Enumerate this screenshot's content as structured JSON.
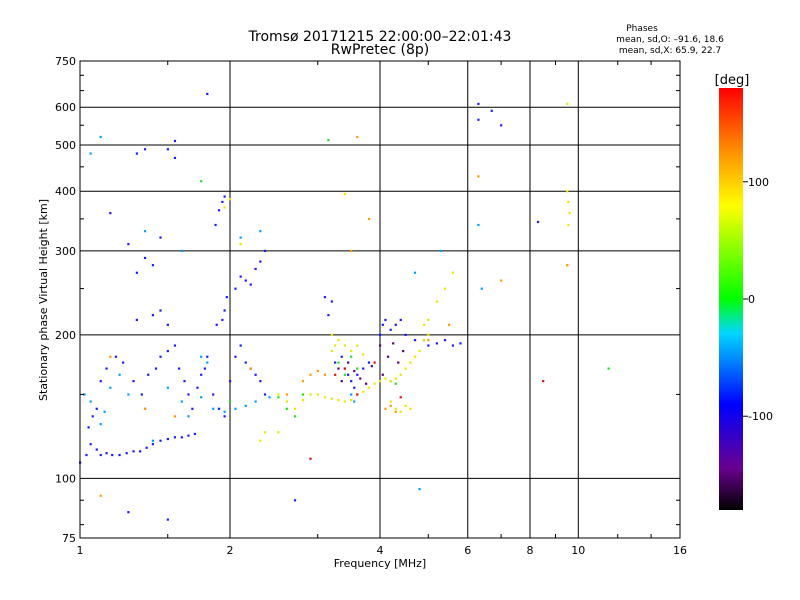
{
  "chart_data": {
    "type": "scatter",
    "title": "Tromsø 20171215 22:00:00–22:01:43",
    "subtitle": "RwPretec (8p)",
    "stats": {
      "heading": "Phases",
      "line1": "mean, sd,O: –91.6, 18.6",
      "line2": "mean, sd,X:  65.9, 22.7"
    },
    "xlabel": "Frequency [MHz]",
    "ylabel": "Stationary phase Virtual Height [km]",
    "xscale": "log",
    "yscale": "log",
    "xlim": [
      1,
      16
    ],
    "ylim": [
      75,
      750
    ],
    "xticks": [
      1,
      2,
      4,
      6,
      8,
      10,
      16
    ],
    "xtick_labels": [
      "1",
      "2",
      "4",
      "6",
      "8",
      "10",
      "16"
    ],
    "yticks": [
      75,
      100,
      200,
      300,
      400,
      500,
      600,
      750
    ],
    "ytick_labels": [
      "75",
      "100",
      "200",
      "300",
      "400",
      "500",
      "600",
      "750"
    ],
    "grid": true,
    "colorbar": {
      "label": "[deg]",
      "range": [
        -180,
        180
      ],
      "ticks": [
        100,
        0,
        -100
      ],
      "tick_labels": [
        "100",
        "0",
        "-100"
      ]
    },
    "series": [
      {
        "color": "#1a1aff",
        "points": [
          [
            1.0,
            108
          ],
          [
            1.03,
            112
          ],
          [
            1.05,
            118
          ],
          [
            1.08,
            115
          ],
          [
            1.1,
            112
          ],
          [
            1.13,
            113
          ],
          [
            1.16,
            112
          ],
          [
            1.2,
            112
          ],
          [
            1.24,
            113
          ],
          [
            1.28,
            114
          ],
          [
            1.32,
            114
          ],
          [
            1.36,
            116
          ],
          [
            1.4,
            118
          ],
          [
            1.45,
            120
          ],
          [
            1.5,
            121
          ],
          [
            1.55,
            122
          ],
          [
            1.6,
            122
          ],
          [
            1.65,
            123
          ],
          [
            1.7,
            124
          ],
          [
            1.04,
            128
          ],
          [
            1.06,
            135
          ],
          [
            1.08,
            140
          ],
          [
            1.02,
            150
          ],
          [
            1.1,
            160
          ],
          [
            1.13,
            170
          ],
          [
            1.18,
            180
          ],
          [
            1.22,
            175
          ],
          [
            1.28,
            160
          ],
          [
            1.33,
            150
          ],
          [
            1.37,
            165
          ],
          [
            1.42,
            170
          ],
          [
            1.45,
            180
          ],
          [
            1.5,
            185
          ],
          [
            1.55,
            190
          ],
          [
            1.58,
            170
          ],
          [
            1.62,
            160
          ],
          [
            1.65,
            150
          ],
          [
            1.68,
            140
          ],
          [
            1.72,
            155
          ],
          [
            1.75,
            165
          ],
          [
            1.78,
            170
          ],
          [
            1.8,
            180
          ],
          [
            1.85,
            150
          ],
          [
            1.9,
            140
          ],
          [
            1.95,
            135
          ],
          [
            2.0,
            160
          ],
          [
            2.05,
            180
          ],
          [
            2.1,
            190
          ],
          [
            2.15,
            175
          ],
          [
            2.2,
            170
          ],
          [
            2.25,
            165
          ],
          [
            2.3,
            160
          ],
          [
            2.35,
            150
          ],
          [
            1.3,
            215
          ],
          [
            1.4,
            220
          ],
          [
            1.45,
            225
          ],
          [
            1.5,
            210
          ],
          [
            1.88,
            210
          ],
          [
            1.93,
            215
          ],
          [
            1.95,
            225
          ],
          [
            1.97,
            240
          ],
          [
            2.05,
            250
          ],
          [
            2.1,
            265
          ],
          [
            2.15,
            260
          ],
          [
            2.2,
            255
          ],
          [
            2.25,
            275
          ],
          [
            2.3,
            285
          ],
          [
            2.35,
            300
          ],
          [
            1.3,
            270
          ],
          [
            1.35,
            290
          ],
          [
            1.4,
            280
          ],
          [
            1.25,
            310
          ],
          [
            1.15,
            360
          ],
          [
            1.45,
            320
          ],
          [
            1.87,
            340
          ],
          [
            1.9,
            365
          ],
          [
            1.93,
            380
          ],
          [
            1.95,
            390
          ],
          [
            1.3,
            480
          ],
          [
            1.35,
            490
          ],
          [
            1.5,
            490
          ],
          [
            1.55,
            510
          ],
          [
            1.55,
            470
          ],
          [
            1.8,
            640
          ],
          [
            1.5,
            82
          ],
          [
            1.25,
            85
          ],
          [
            3.25,
            175
          ],
          [
            3.35,
            180
          ],
          [
            3.4,
            170
          ],
          [
            3.45,
            165
          ],
          [
            3.5,
            160
          ],
          [
            3.55,
            155
          ],
          [
            3.6,
            165
          ],
          [
            3.7,
            170
          ],
          [
            3.8,
            175
          ],
          [
            4.0,
            200
          ],
          [
            4.05,
            210
          ],
          [
            4.1,
            215
          ],
          [
            4.2,
            205
          ],
          [
            4.3,
            210
          ],
          [
            4.4,
            215
          ],
          [
            4.5,
            200
          ],
          [
            4.7,
            195
          ],
          [
            4.9,
            195
          ],
          [
            5.0,
            190
          ],
          [
            5.2,
            192
          ],
          [
            5.4,
            195
          ],
          [
            5.6,
            190
          ],
          [
            5.8,
            192
          ],
          [
            3.1,
            240
          ],
          [
            3.2,
            235
          ],
          [
            3.15,
            220
          ],
          [
            6.3,
            610
          ],
          [
            6.3,
            565
          ],
          [
            6.7,
            590
          ],
          [
            7.0,
            550
          ],
          [
            8.3,
            345
          ],
          [
            2.7,
            90
          ]
        ]
      },
      {
        "color": "#00a0ff",
        "points": [
          [
            1.02,
            150
          ],
          [
            1.05,
            145
          ],
          [
            1.1,
            130
          ],
          [
            1.12,
            138
          ],
          [
            1.15,
            155
          ],
          [
            1.2,
            165
          ],
          [
            1.25,
            150
          ],
          [
            1.35,
            140
          ],
          [
            1.5,
            155
          ],
          [
            1.6,
            145
          ],
          [
            1.65,
            135
          ],
          [
            1.75,
            148
          ],
          [
            1.85,
            140
          ],
          [
            1.95,
            138
          ],
          [
            2.05,
            140
          ],
          [
            2.15,
            142
          ],
          [
            2.25,
            145
          ],
          [
            2.4,
            148
          ],
          [
            1.05,
            480
          ],
          [
            1.1,
            520
          ],
          [
            1.35,
            330
          ],
          [
            1.6,
            300
          ],
          [
            2.1,
            320
          ],
          [
            2.3,
            330
          ],
          [
            6.3,
            340
          ],
          [
            6.4,
            250
          ],
          [
            5.3,
            300
          ],
          [
            4.7,
            270
          ],
          [
            4.8,
            95
          ],
          [
            3.5,
            150
          ],
          [
            3.55,
            145
          ],
          [
            1.75,
            180
          ],
          [
            1.8,
            175
          ],
          [
            1.4,
            120
          ]
        ]
      },
      {
        "color": "#20e020",
        "points": [
          [
            2.5,
            148
          ],
          [
            2.6,
            140
          ],
          [
            2.7,
            135
          ],
          [
            2.8,
            150
          ],
          [
            3.3,
            175
          ],
          [
            3.4,
            165
          ],
          [
            3.5,
            180
          ],
          [
            3.6,
            170
          ],
          [
            1.75,
            420
          ],
          [
            11.5,
            170
          ],
          [
            4.2,
            160
          ],
          [
            4.3,
            158
          ],
          [
            2.0,
            145
          ],
          [
            3.15,
            512
          ]
        ]
      },
      {
        "color": "#e8e800",
        "points": [
          [
            2.5,
            150
          ],
          [
            2.6,
            145
          ],
          [
            2.7,
            140
          ],
          [
            2.8,
            146
          ],
          [
            2.9,
            150
          ],
          [
            3.0,
            150
          ],
          [
            3.1,
            148
          ],
          [
            3.2,
            147
          ],
          [
            3.3,
            146
          ],
          [
            3.4,
            145
          ],
          [
            3.5,
            146
          ],
          [
            3.6,
            150
          ],
          [
            3.7,
            152
          ],
          [
            3.8,
            155
          ],
          [
            3.9,
            158
          ],
          [
            4.0,
            160
          ],
          [
            4.1,
            162
          ],
          [
            4.2,
            160
          ],
          [
            4.3,
            162
          ],
          [
            4.4,
            165
          ],
          [
            4.5,
            170
          ],
          [
            4.6,
            175
          ],
          [
            4.7,
            180
          ],
          [
            4.8,
            185
          ],
          [
            4.9,
            195
          ],
          [
            5.0,
            200
          ],
          [
            3.2,
            200
          ],
          [
            3.3,
            195
          ],
          [
            3.4,
            190
          ],
          [
            3.5,
            185
          ],
          [
            3.6,
            190
          ],
          [
            3.7,
            182
          ],
          [
            3.2,
            185
          ],
          [
            3.25,
            190
          ],
          [
            2.3,
            120
          ],
          [
            2.35,
            125
          ],
          [
            2.5,
            125
          ],
          [
            4.2,
            145
          ],
          [
            4.3,
            140
          ],
          [
            4.4,
            138
          ],
          [
            4.5,
            142
          ],
          [
            4.6,
            140
          ],
          [
            4.9,
            210
          ],
          [
            5.0,
            215
          ],
          [
            5.2,
            235
          ],
          [
            5.4,
            250
          ],
          [
            5.6,
            270
          ],
          [
            9.5,
            400
          ],
          [
            9.55,
            380
          ],
          [
            9.6,
            360
          ],
          [
            9.55,
            340
          ],
          [
            9.5,
            610
          ],
          [
            9.5,
            280
          ],
          [
            2.1,
            310
          ],
          [
            2.0,
            385
          ],
          [
            1.95,
            370
          ],
          [
            3.4,
            395
          ]
        ]
      },
      {
        "color": "#ff9900",
        "points": [
          [
            1.1,
            92
          ],
          [
            1.15,
            180
          ],
          [
            1.35,
            140
          ],
          [
            1.55,
            135
          ],
          [
            2.2,
            170
          ],
          [
            2.6,
            150
          ],
          [
            2.8,
            160
          ],
          [
            2.9,
            165
          ],
          [
            3.0,
            168
          ],
          [
            3.1,
            165
          ],
          [
            3.5,
            300
          ],
          [
            3.6,
            520
          ],
          [
            3.8,
            350
          ],
          [
            4.1,
            140
          ],
          [
            4.2,
            142
          ],
          [
            4.3,
            138
          ],
          [
            5.0,
            195
          ],
          [
            5.5,
            210
          ],
          [
            6.3,
            430
          ],
          [
            7.0,
            260
          ],
          [
            9.5,
            280
          ]
        ]
      },
      {
        "color": "#e01010",
        "points": [
          [
            3.25,
            165
          ],
          [
            3.4,
            170
          ],
          [
            3.6,
            150
          ],
          [
            3.9,
            175
          ],
          [
            4.4,
            148
          ],
          [
            2.9,
            110
          ],
          [
            8.5,
            160
          ]
        ]
      },
      {
        "color": "#5a007a",
        "points": [
          [
            3.3,
            170
          ],
          [
            3.35,
            160
          ],
          [
            3.45,
            175
          ],
          [
            3.55,
            168
          ],
          [
            3.65,
            162
          ],
          [
            3.75,
            158
          ],
          [
            3.85,
            172
          ],
          [
            4.05,
            165
          ],
          [
            4.15,
            180
          ],
          [
            4.35,
            175
          ],
          [
            4.45,
            185
          ],
          [
            4.0,
            190
          ],
          [
            4.25,
            192
          ]
        ]
      }
    ]
  }
}
